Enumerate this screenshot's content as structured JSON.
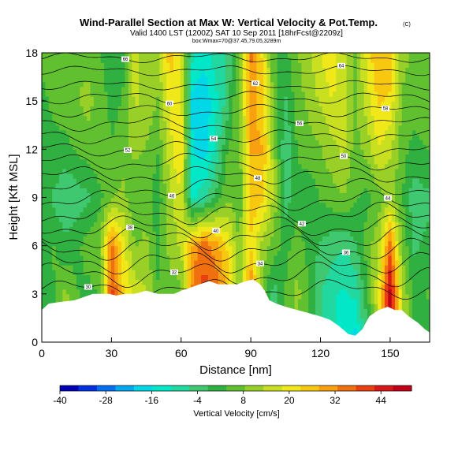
{
  "chart_data": {
    "type": "heatmap",
    "title": "Wind-Parallel Section at Max W: Vertical Velocity & Pot.Temp.",
    "title_badge": "(C)",
    "subtitle": "Valid 1400 LST (1200Z) SAT 10 Sep 2011 [18hrFcst@2209z]",
    "subtitle2": "box:Wmax=70@37.45,79.05,3289m",
    "xlabel": "Distance [nm]",
    "ylabel": "Height [Kft MSL]",
    "xlim": [
      0,
      167
    ],
    "ylim": [
      0,
      18
    ],
    "x_ticks": [
      0,
      30,
      60,
      90,
      120,
      150
    ],
    "y_ticks": [
      0,
      3,
      6,
      9,
      12,
      15,
      18
    ],
    "colorbar": {
      "label": "Vertical Velocity [cm/s]",
      "ticks": [
        -40,
        -28,
        -16,
        -4,
        8,
        20,
        32,
        44
      ],
      "min": -40,
      "max": 52,
      "colors": [
        "#0000b4",
        "#0030e0",
        "#0070f0",
        "#00a8f0",
        "#00d8e8",
        "#00e8c8",
        "#20d8a0",
        "#40c870",
        "#30b040",
        "#60c030",
        "#98d028",
        "#c8e020",
        "#f0e818",
        "#f8c810",
        "#f8a010",
        "#f07010",
        "#e84010",
        "#d81818",
        "#c00018"
      ]
    },
    "columns": [
      {
        "x": 0,
        "w": [
          2,
          2,
          2,
          4,
          2,
          3,
          4
        ]
      },
      {
        "x": 5,
        "w": [
          2,
          3,
          4,
          -2,
          3,
          4,
          5
        ]
      },
      {
        "x": 10,
        "w": [
          8,
          10,
          0,
          -6,
          2,
          6,
          6
        ]
      },
      {
        "x": 15,
        "w": [
          6,
          4,
          2,
          -4,
          4,
          8,
          8
        ]
      },
      {
        "x": 20,
        "w": [
          4,
          2,
          6,
          -2,
          6,
          10,
          6
        ]
      },
      {
        "x": 25,
        "w": [
          3,
          4,
          8,
          2,
          8,
          6,
          4
        ]
      },
      {
        "x": 30,
        "w": [
          36,
          40,
          34,
          8,
          4,
          2,
          0
        ]
      },
      {
        "x": 35,
        "w": [
          26,
          24,
          20,
          10,
          6,
          4,
          2
        ]
      },
      {
        "x": 40,
        "w": [
          12,
          16,
          8,
          4,
          10,
          14,
          16
        ]
      },
      {
        "x": 45,
        "w": [
          18,
          14,
          10,
          6,
          8,
          12,
          10
        ]
      },
      {
        "x": 50,
        "w": [
          6,
          4,
          2,
          0,
          4,
          8,
          12
        ]
      },
      {
        "x": 55,
        "w": [
          4,
          6,
          10,
          12,
          16,
          20,
          26
        ]
      },
      {
        "x": 60,
        "w": [
          2,
          6,
          14,
          18,
          24,
          20,
          18
        ]
      },
      {
        "x": 65,
        "w": [
          26,
          34,
          30,
          -12,
          -16,
          -18,
          -10
        ]
      },
      {
        "x": 70,
        "w": [
          30,
          40,
          36,
          -8,
          -18,
          -20,
          -14
        ]
      },
      {
        "x": 75,
        "w": [
          34,
          36,
          30,
          0,
          -10,
          -12,
          -8
        ]
      },
      {
        "x": 80,
        "w": [
          24,
          26,
          22,
          8,
          4,
          -4,
          -6
        ]
      },
      {
        "x": 85,
        "w": [
          12,
          10,
          8,
          4,
          6,
          10,
          8
        ]
      },
      {
        "x": 90,
        "w": [
          18,
          36,
          22,
          26,
          28,
          30,
          34
        ]
      },
      {
        "x": 95,
        "w": [
          8,
          6,
          12,
          24,
          28,
          26,
          22
        ]
      },
      {
        "x": 100,
        "w": [
          -2,
          -4,
          6,
          12,
          10,
          6,
          4
        ]
      },
      {
        "x": 105,
        "w": [
          6,
          4,
          2,
          -4,
          -6,
          -2,
          2
        ]
      },
      {
        "x": 110,
        "w": [
          8,
          10,
          6,
          2,
          4,
          6,
          8
        ]
      },
      {
        "x": 115,
        "w": [
          2,
          4,
          2,
          0,
          6,
          10,
          12
        ]
      },
      {
        "x": 120,
        "w": [
          -4,
          -6,
          -2,
          4,
          8,
          14,
          18
        ]
      },
      {
        "x": 125,
        "w": [
          -8,
          -10,
          -4,
          6,
          12,
          18,
          22
        ]
      },
      {
        "x": 130,
        "w": [
          -14,
          -12,
          -6,
          8,
          14,
          16,
          14
        ]
      },
      {
        "x": 135,
        "w": [
          -18,
          -10,
          -2,
          4,
          6,
          8,
          6
        ]
      },
      {
        "x": 140,
        "w": [
          -4,
          2,
          6,
          2,
          10,
          16,
          20
        ]
      },
      {
        "x": 145,
        "w": [
          10,
          18,
          12,
          6,
          18,
          24,
          28
        ]
      },
      {
        "x": 150,
        "w": [
          46,
          50,
          36,
          10,
          14,
          22,
          26
        ]
      },
      {
        "x": 155,
        "w": [
          16,
          14,
          8,
          4,
          6,
          8,
          10
        ]
      },
      {
        "x": 160,
        "w": [
          4,
          2,
          -2,
          -4,
          2,
          6,
          8
        ]
      },
      {
        "x": 167,
        "w": [
          2,
          4,
          0,
          -2,
          4,
          6,
          6
        ]
      }
    ],
    "terrain": [
      [
        0,
        2
      ],
      [
        3,
        2.4
      ],
      [
        8,
        2.5
      ],
      [
        14,
        2.6
      ],
      [
        18,
        2.8
      ],
      [
        22,
        3.0
      ],
      [
        26,
        3.0
      ],
      [
        29,
        3.0
      ],
      [
        32,
        2.9
      ],
      [
        36,
        3.0
      ],
      [
        40,
        3.0
      ],
      [
        45,
        3.2
      ],
      [
        50,
        3.0
      ],
      [
        54,
        3.0
      ],
      [
        57,
        3.0
      ],
      [
        60,
        3.2
      ],
      [
        64,
        3.4
      ],
      [
        68,
        3.6
      ],
      [
        72,
        3.8
      ],
      [
        76,
        3.6
      ],
      [
        80,
        3.6
      ],
      [
        84,
        3.6
      ],
      [
        88,
        3.8
      ],
      [
        91,
        3.9
      ],
      [
        94,
        3.6
      ],
      [
        96,
        3.2
      ],
      [
        98,
        2.6
      ],
      [
        101,
        2.4
      ],
      [
        105,
        2.2
      ],
      [
        110,
        2.0
      ],
      [
        115,
        1.8
      ],
      [
        120,
        1.6
      ],
      [
        124,
        1.4
      ],
      [
        128,
        1.0
      ],
      [
        132,
        0.5
      ],
      [
        135,
        0.4
      ],
      [
        138,
        0.8
      ],
      [
        141,
        1.6
      ],
      [
        145,
        2.0
      ],
      [
        149,
        2.2
      ],
      [
        152,
        2.0
      ],
      [
        155,
        2.0
      ],
      [
        158,
        1.6
      ],
      [
        162,
        1.2
      ],
      [
        165,
        0.8
      ],
      [
        167,
        0.6
      ]
    ],
    "isentropes": [
      {
        "base": 3.3,
        "amp": 0.4,
        "label": "30"
      },
      {
        "base": 4.2,
        "amp": 0.5,
        "label": "32"
      },
      {
        "base": 5.0,
        "amp": 0.5,
        "label": "34"
      },
      {
        "base": 5.8,
        "amp": 0.5,
        "label": "36"
      },
      {
        "base": 6.5,
        "amp": 0.5,
        "label": "38"
      },
      {
        "base": 7.2,
        "amp": 0.45,
        "label": "40"
      },
      {
        "base": 8.0,
        "amp": 0.45,
        "label": "42"
      },
      {
        "base": 8.8,
        "amp": 0.4,
        "label": "44"
      },
      {
        "base": 9.6,
        "amp": 0.4,
        "label": "46"
      },
      {
        "base": 10.4,
        "amp": 0.35,
        "label": "48"
      },
      {
        "base": 11.2,
        "amp": 0.35,
        "label": "50"
      },
      {
        "base": 12.0,
        "amp": 0.3,
        "label": "52"
      },
      {
        "base": 12.8,
        "amp": 0.3,
        "label": "54"
      },
      {
        "base": 13.6,
        "amp": 0.3,
        "label": "56"
      },
      {
        "base": 14.4,
        "amp": 0.25,
        "label": "58"
      },
      {
        "base": 15.2,
        "amp": 0.25,
        "label": "60"
      },
      {
        "base": 16.0,
        "amp": 0.2,
        "label": "62"
      },
      {
        "base": 16.9,
        "amp": 0.2,
        "label": "64"
      },
      {
        "base": 17.7,
        "amp": 0.2,
        "label": "66"
      }
    ]
  }
}
